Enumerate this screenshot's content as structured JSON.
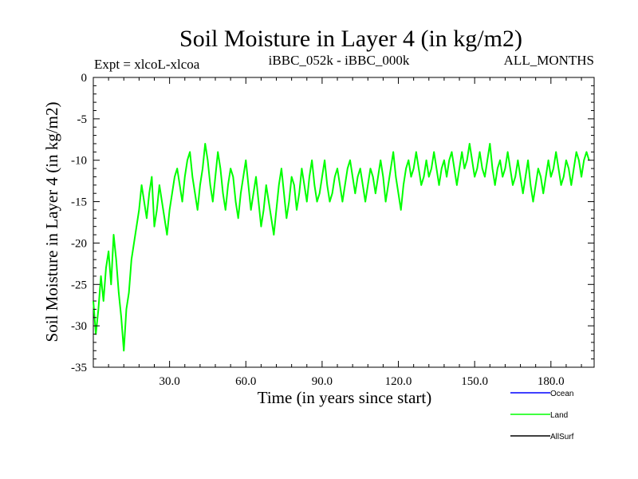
{
  "chart_data": {
    "type": "line",
    "title": "Soil Moisture in Layer 4 (in kg/m2)",
    "subtitle_left": "Expt = xlcoL-xlcoa",
    "subtitle_center": "iBBC_052k - iBBC_000k",
    "subtitle_right": "ALL_MONTHS",
    "xlabel": "Time (in years since start)",
    "ylabel": "Soil Moisture in Layer 4 (in kg/m2)",
    "xlim": [
      0,
      197
    ],
    "ylim": [
      -35,
      0
    ],
    "x_ticks": [
      30,
      60,
      90,
      120,
      150,
      180
    ],
    "x_tick_labels": [
      "30.0",
      "60.0",
      "90.0",
      "120.0",
      "150.0",
      "180.0"
    ],
    "y_ticks": [
      0,
      -5,
      -10,
      -15,
      -20,
      -25,
      -30,
      -35
    ],
    "y_tick_labels": [
      "0",
      "-5",
      "-10",
      "-15",
      "-20",
      "-25",
      "-30",
      "-35"
    ],
    "legend": [
      {
        "name": "Ocean",
        "color": "#0000ff"
      },
      {
        "name": "Land",
        "color": "#00ff00"
      },
      {
        "name": "AllSurf",
        "color": "#000000"
      }
    ],
    "series": [
      {
        "name": "Land",
        "color": "#00ff00",
        "x_start": 0,
        "x_step": 1,
        "values": [
          -27,
          -31,
          -28,
          -24,
          -27,
          -23,
          -21,
          -25,
          -19,
          -22,
          -26,
          -29,
          -33,
          -28,
          -26,
          -22,
          -20,
          -18,
          -16,
          -13,
          -15,
          -17,
          -14,
          -12,
          -18,
          -16,
          -13,
          -15,
          -17,
          -19,
          -16,
          -14,
          -12,
          -11,
          -13,
          -15,
          -12,
          -10,
          -9,
          -12,
          -14,
          -16,
          -13,
          -11,
          -8,
          -10,
          -13,
          -15,
          -12,
          -9,
          -11,
          -14,
          -16,
          -13,
          -11,
          -12,
          -15,
          -17,
          -14,
          -12,
          -10,
          -13,
          -16,
          -14,
          -12,
          -15,
          -18,
          -16,
          -13,
          -15,
          -17,
          -19,
          -16,
          -13,
          -11,
          -14,
          -17,
          -15,
          -12,
          -13,
          -16,
          -14,
          -11,
          -13,
          -15,
          -12,
          -10,
          -13,
          -15,
          -14,
          -12,
          -10,
          -13,
          -15,
          -14,
          -12,
          -11,
          -13,
          -15,
          -13,
          -11,
          -10,
          -12,
          -14,
          -12,
          -11,
          -13,
          -15,
          -13,
          -11,
          -12,
          -14,
          -12,
          -10,
          -12,
          -15,
          -13,
          -11,
          -9,
          -12,
          -14,
          -16,
          -13,
          -11,
          -10,
          -12,
          -11,
          -9,
          -11,
          -13,
          -12,
          -10,
          -12,
          -11,
          -9,
          -11,
          -13,
          -11,
          -10,
          -12,
          -10,
          -9,
          -11,
          -13,
          -11,
          -9,
          -11,
          -10,
          -8,
          -10,
          -12,
          -11,
          -9,
          -11,
          -12,
          -10,
          -8,
          -11,
          -13,
          -11,
          -10,
          -12,
          -11,
          -9,
          -11,
          -13,
          -12,
          -10,
          -12,
          -14,
          -12,
          -10,
          -13,
          -15,
          -13,
          -11,
          -12,
          -14,
          -12,
          -10,
          -12,
          -11,
          -9,
          -11,
          -13,
          -12,
          -10,
          -11,
          -13,
          -11,
          -9,
          -10,
          -12,
          -10,
          -9,
          -10
        ]
      }
    ]
  }
}
